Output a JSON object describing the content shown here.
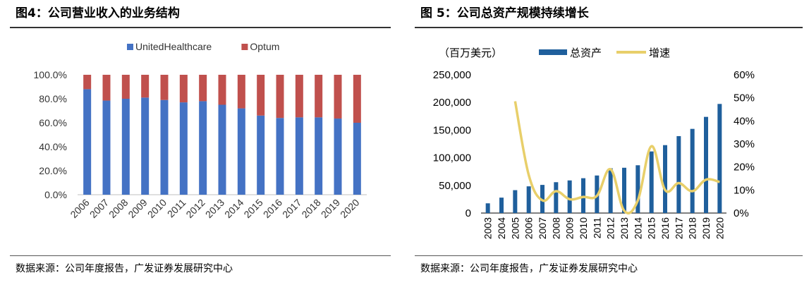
{
  "left": {
    "title": "图4：公司营业收入的业务结构",
    "source": "数据来源：公司年度报告，广发证券发展研究中心",
    "chart_data": {
      "type": "bar",
      "stacked": true,
      "categories": [
        "2006",
        "2007",
        "2008",
        "2009",
        "2010",
        "2011",
        "2012",
        "2013",
        "2014",
        "2015",
        "2016",
        "2017",
        "2018",
        "2019",
        "2020"
      ],
      "series": [
        {
          "name": "UnitedHealthcare",
          "color": "#4472c4",
          "values": [
            88,
            78.5,
            80,
            81,
            79,
            77,
            78,
            75,
            72,
            66,
            64,
            64.5,
            64.5,
            63.5,
            60
          ]
        },
        {
          "name": "Optum",
          "color": "#c0504d",
          "values": [
            12,
            21.5,
            20,
            19,
            21,
            23,
            22,
            25,
            28,
            34,
            36,
            35.5,
            35.5,
            36.5,
            40
          ]
        }
      ],
      "yticks": [
        "0.0%",
        "20.0%",
        "40.0%",
        "60.0%",
        "80.0%",
        "100.0%"
      ],
      "ylim": [
        0,
        100
      ],
      "legend_position": "top-center",
      "grid": false
    }
  },
  "right": {
    "title": "图 5：公司总资产规模持续增长",
    "source": "数据来源：公司年度报告，广发证券发展研究中心",
    "unit_label": "（百万美元）",
    "chart_data": {
      "type": "bar",
      "categories": [
        "2003",
        "2004",
        "2005",
        "2006",
        "2007",
        "2008",
        "2009",
        "2010",
        "2011",
        "2012",
        "2013",
        "2014",
        "2015",
        "2016",
        "2017",
        "2018",
        "2019",
        "2020"
      ],
      "series": [
        {
          "name": "总资产",
          "type": "bar",
          "axis": "left",
          "color": "#1f5f9c",
          "values": [
            17600,
            27900,
            41400,
            48300,
            50900,
            55800,
            59000,
            63000,
            67900,
            81000,
            81900,
            86400,
            111400,
            122800,
            139100,
            152200,
            173900,
            197300
          ]
        },
        {
          "name": "增速",
          "type": "line",
          "axis": "right",
          "color": "#e8cf6a",
          "values": [
            null,
            null,
            48.5,
            16.5,
            5.5,
            9.5,
            6,
            7,
            7.5,
            19,
            1,
            5.5,
            29,
            10,
            13,
            9.5,
            14.5,
            13.5
          ]
        }
      ],
      "yticks_left": [
        "0",
        "50,000",
        "100,000",
        "150,000",
        "200,000",
        "250,000"
      ],
      "ylim_left": [
        0,
        250000
      ],
      "yticks_right": [
        "0%",
        "10%",
        "20%",
        "30%",
        "40%",
        "50%",
        "60%"
      ],
      "ylim_right": [
        0,
        60
      ],
      "legend_position": "top-center",
      "grid": false
    }
  }
}
